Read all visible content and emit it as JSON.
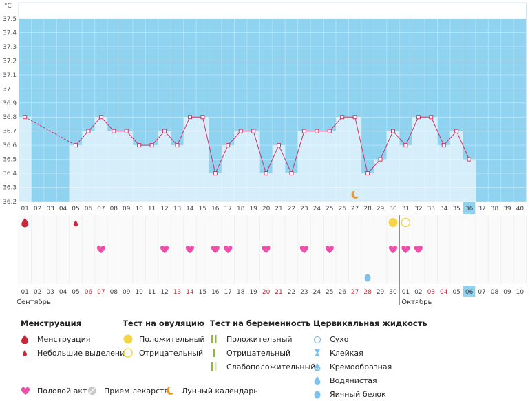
{
  "chart_data": {
    "type": "line",
    "unit_label": "°C",
    "y_ticks": [
      "37.5",
      "37.4",
      "37.3",
      "37.2",
      "37.1",
      "37",
      "36.9",
      "36.8",
      "36.7",
      "36.6",
      "36.5",
      "36.4",
      "36.3",
      "36.2"
    ],
    "ylim": [
      36.2,
      37.6
    ],
    "cycle_days": [
      "01",
      "02",
      "03",
      "04",
      "05",
      "06",
      "07",
      "08",
      "09",
      "10",
      "11",
      "12",
      "13",
      "14",
      "15",
      "16",
      "17",
      "18",
      "19",
      "20",
      "21",
      "22",
      "23",
      "24",
      "25",
      "26",
      "27",
      "28",
      "29",
      "30",
      "31",
      "32",
      "33",
      "34",
      "35",
      "36",
      "37",
      "38",
      "39",
      "40"
    ],
    "current_day": "36",
    "temperatures": [
      36.8,
      null,
      null,
      null,
      36.6,
      36.7,
      36.8,
      36.7,
      36.7,
      36.6,
      36.6,
      36.7,
      36.6,
      36.8,
      36.8,
      36.4,
      36.6,
      36.7,
      36.7,
      36.4,
      36.6,
      36.4,
      36.7,
      36.7,
      36.7,
      36.8,
      36.8,
      36.4,
      36.5,
      36.7,
      36.6,
      36.8,
      36.8,
      36.6,
      36.7,
      36.5,
      null,
      null,
      null,
      null
    ],
    "dates": [
      "01",
      "02",
      "03",
      "04",
      "05",
      "06",
      "07",
      "08",
      "09",
      "10",
      "11",
      "12",
      "13",
      "14",
      "15",
      "16",
      "17",
      "18",
      "19",
      "20",
      "21",
      "22",
      "23",
      "24",
      "25",
      "26",
      "27",
      "28",
      "29",
      "30",
      "01",
      "02",
      "03",
      "04",
      "05",
      "06",
      "07",
      "08",
      "09",
      "10"
    ],
    "date_highlight_days": [
      6,
      7,
      13,
      14,
      20,
      21,
      27,
      28,
      33,
      34
    ],
    "month_labels": [
      {
        "day": 1,
        "text": "Сентябрь"
      },
      {
        "day": 31,
        "text": "Октябрь"
      }
    ],
    "markers": {
      "menstruation": [
        1
      ],
      "light_spotting": [
        5
      ],
      "ovulation_positive": [
        30
      ],
      "ovulation_negative": [
        31
      ],
      "intercourse": [
        7,
        12,
        14,
        16,
        17,
        20,
        23,
        25,
        30,
        31,
        32
      ],
      "moon": [
        27
      ],
      "cervical_egg_white": [
        28
      ]
    }
  },
  "legend": {
    "menstruation": {
      "title": "Менструация",
      "items": [
        "Менструация",
        "Небольшие выделения"
      ]
    },
    "ovulation": {
      "title": "Тест на овуляцию",
      "items": [
        "Положительный",
        "Отрицательный"
      ]
    },
    "pregnancy": {
      "title": "Тест на беременность",
      "items": [
        "Положительный",
        "Отрицательный",
        "Слабоположительный"
      ]
    },
    "cervical": {
      "title": "Цервикальная жидкость",
      "items": [
        "Сухо",
        "Клейкая",
        "Кремообразная",
        "Водянистая",
        "Яичный белок"
      ]
    },
    "bottom": [
      "Половой акт",
      "Прием лекарств",
      "Лунный календарь"
    ]
  },
  "colors": {
    "bg_top": "#8fd3f0",
    "area": "#d6eefa",
    "line": "#cc3366",
    "red": "#d0243a",
    "pink": "#ee4fa8",
    "yellow": "#f5d547",
    "orange": "#e8962a",
    "green": "#8fb83c",
    "drop": "#7fc1ea",
    "today": "#8fd3f0"
  }
}
